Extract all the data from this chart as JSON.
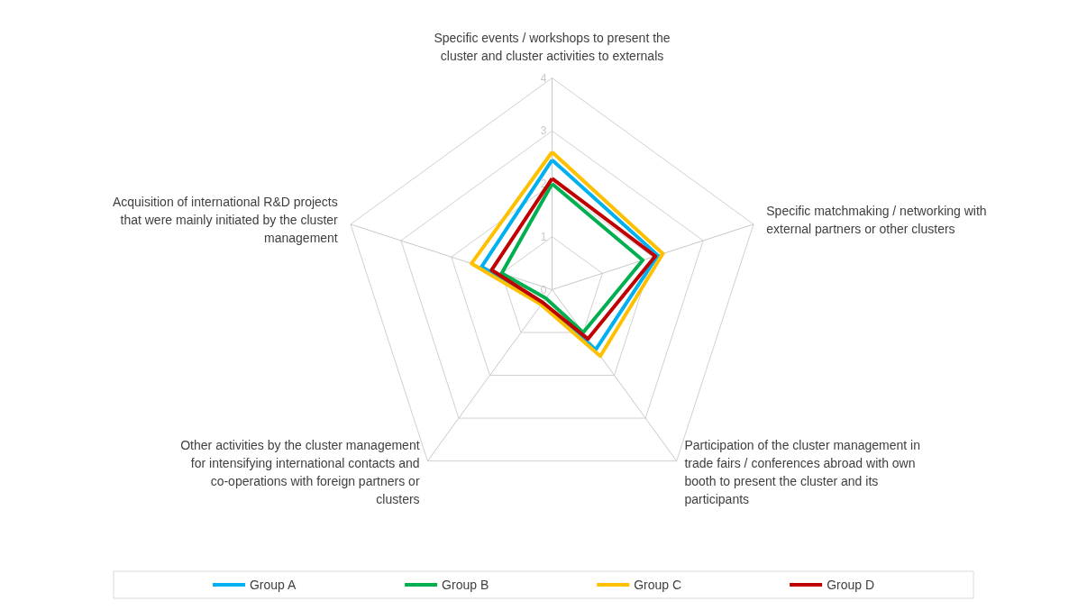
{
  "chart_data": {
    "type": "radar",
    "categories": [
      "Specific events / workshops to present the cluster and cluster activities to externals",
      "Specific matchmaking / networking with external partners or other clusters",
      "Participation of the cluster management in trade fairs / conferences abroad with own booth to present the cluster and its participants",
      "Other activities by the cluster management for intensifying international contacts and co-operations with foreign partners or clusters",
      "Acquisition of international R&D projects that were mainly initiated by the cluster management"
    ],
    "series": [
      {
        "name": "Group A",
        "color": "#00b0f0",
        "values": [
          2.45,
          2.1,
          1.4,
          0.3,
          1.4
        ]
      },
      {
        "name": "Group B",
        "color": "#00b050",
        "values": [
          2.0,
          1.8,
          1.0,
          0.2,
          1.0
        ]
      },
      {
        "name": "Group C",
        "color": "#ffc000",
        "values": [
          2.6,
          2.2,
          1.55,
          0.35,
          1.6
        ]
      },
      {
        "name": "Group D",
        "color": "#c00000",
        "values": [
          2.1,
          2.05,
          1.15,
          0.3,
          1.2
        ]
      }
    ],
    "ylim": [
      0,
      4
    ],
    "yticks": [
      0,
      1,
      2,
      3,
      4
    ],
    "grid": true,
    "legend": "bottom",
    "marker": "none",
    "line_style": "solid"
  }
}
